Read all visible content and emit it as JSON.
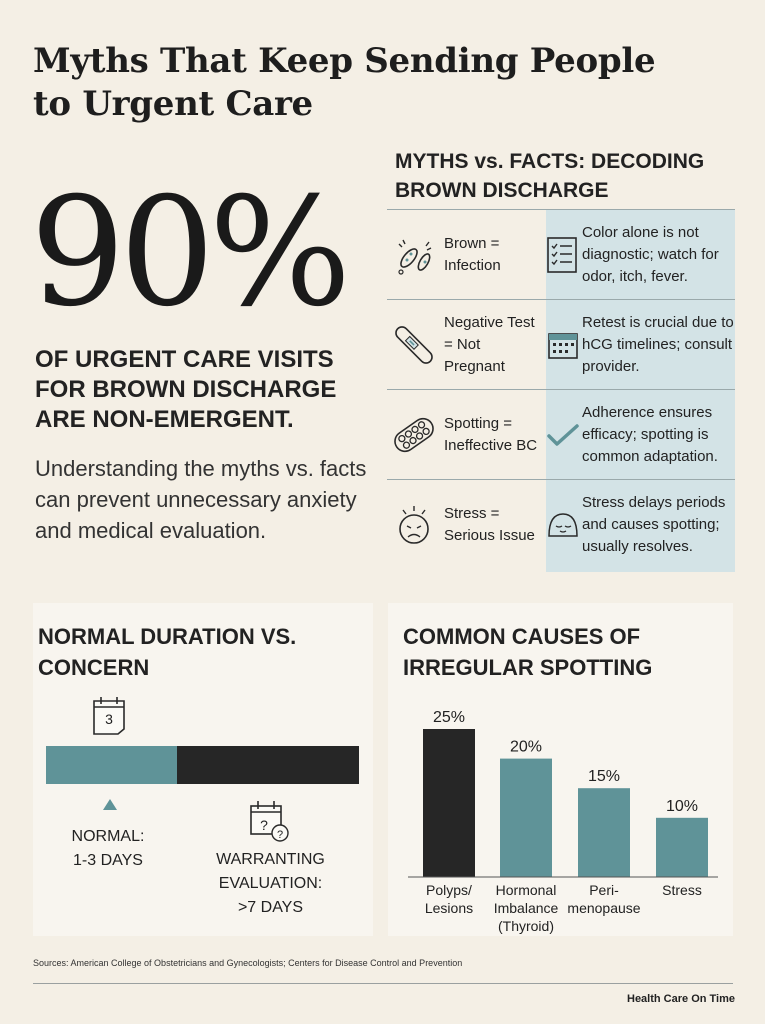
{
  "title": "Myths That Keep Sending People to Urgent Care",
  "stat": {
    "value": "90%",
    "caption": "OF URGENT CARE VISITS FOR BROWN  DISCHARGE ARE NON-EMERGENT.",
    "description": "Understanding the myths vs. facts can prevent unnecessary anxiety and medical evaluation."
  },
  "myths_facts": {
    "heading": "MYTHS vs. FACTS: DECODING BROWN DISCHARGE",
    "rows": [
      {
        "myth": "Brown =\nInfection",
        "myth_icon": "bacteria-icon",
        "fact": "Color alone is not diagnostic; watch for odor, itch, fever.",
        "fact_icon": "checklist-icon"
      },
      {
        "myth": "Negative Test\n= Not Pregnant",
        "myth_icon": "pregnancy-test-icon",
        "fact": "Retest is crucial due to hCG timelines; consult provider.",
        "fact_icon": "calendar-icon"
      },
      {
        "myth": "Spotting =\nIneffective BC",
        "myth_icon": "pill-pack-icon",
        "fact": "Adherence ensures efficacy; spotting is common adaptation.",
        "fact_icon": "checkmark-icon"
      },
      {
        "myth": "Stress =\nSerious Issue",
        "myth_icon": "stressed-face-icon",
        "fact": "Stress delays periods and causes spotting; usually resolves.",
        "fact_icon": "calm-face-icon"
      }
    ]
  },
  "duration": {
    "title": "NORMAL DURATION VS. CONCERN",
    "calendar_day": "3",
    "normal_label": "NORMAL:\n1-3 DAYS",
    "concern_label": "WARRANTING\nEVALUATION:\n>7 DAYS",
    "colors": {
      "normal": "#5f9398",
      "concern": "#262626"
    }
  },
  "chart_data": {
    "type": "bar",
    "title": "COMMON CAUSES OF IRREGULAR SPOTTING",
    "categories": [
      "Polyps/\nLesions",
      "Hormonal\nImbalance\n(Thyroid)",
      "Peri-\nmenopause",
      "Stress"
    ],
    "values": [
      25,
      20,
      15,
      10
    ],
    "value_labels": [
      "25%",
      "20%",
      "15%",
      "10%"
    ],
    "unit": "%",
    "ylim": [
      0,
      25
    ],
    "grid": false,
    "colors": [
      "#262626",
      "#5f9398",
      "#5f9398",
      "#5f9398"
    ]
  },
  "sources": "Sources: American College of Obstetricians and Gynecologists; Centers for Disease Control and Prevention",
  "footer": "Health Care On Time"
}
